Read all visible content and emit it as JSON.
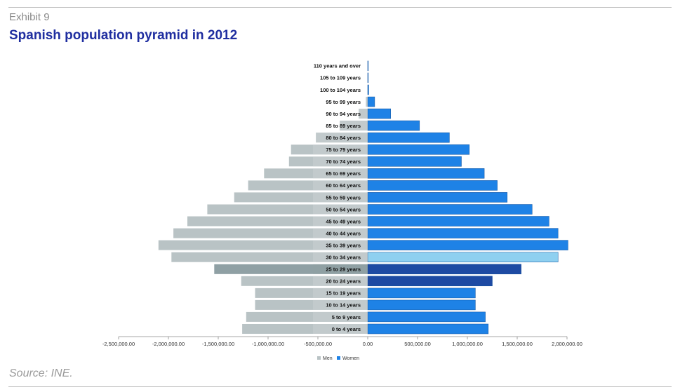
{
  "header": {
    "exhibit": "Exhibit 9",
    "title": "Spanish population pyramid in 2012"
  },
  "footer": {
    "source": "Source: INE."
  },
  "chart_data": {
    "type": "bar",
    "orientation": "horizontal",
    "layout": "population-pyramid",
    "title": "",
    "xlabel": "",
    "ylabel": "",
    "xlim": [
      -2500000,
      2000000
    ],
    "grid": false,
    "legend_position": "bottom",
    "categories": [
      "0 to 4 years",
      "5 to 9 years",
      "10 to 14 years",
      "15 to 19 years",
      "20 to 24 years",
      "25 to 29 years",
      "30 to 34 years",
      "35 to 39 years",
      "40 to 44 years",
      "45 to 49 years",
      "50 to 54 years",
      "55 to 59 years",
      "60 to 64 years",
      "65 to 69 years",
      "70 to 74 years",
      "75 to 79 years",
      "80 to 84 years",
      "85 to 89 years",
      "90 to 94 years",
      "95 to 99 years",
      "100 to 104 years",
      "105 to 109 years",
      "110 years and over"
    ],
    "x_ticks": [
      {
        "value": -2500000,
        "label": "-2,500,000.00"
      },
      {
        "value": -2000000,
        "label": "-2,000,000.00"
      },
      {
        "value": -1500000,
        "label": "-1,500,000.00"
      },
      {
        "value": -1000000,
        "label": "-1,000,000.00"
      },
      {
        "value": -500000,
        "label": "-500,000.00"
      },
      {
        "value": 0,
        "label": "0.00"
      },
      {
        "value": 500000,
        "label": "500,000.00"
      },
      {
        "value": 1000000,
        "label": "1,000,000.00"
      },
      {
        "value": 1500000,
        "label": "1,500,000.00"
      },
      {
        "value": 2000000,
        "label": "2,000,000.00"
      }
    ],
    "series": [
      {
        "name": "Men",
        "color": "#b9c3c5",
        "values": [
          -1260000,
          -1220000,
          -1130000,
          -1130000,
          -1270000,
          -1540000,
          -1970000,
          -2100000,
          -1950000,
          -1810000,
          -1610000,
          -1340000,
          -1200000,
          -1040000,
          -790000,
          -770000,
          -520000,
          -280000,
          -90000,
          -18000,
          -1500,
          -150,
          -30
        ]
      },
      {
        "name": "Women",
        "color": "#1e82e6",
        "values": [
          1210000,
          1180000,
          1080000,
          1080000,
          1250000,
          1540000,
          1910000,
          2010000,
          1910000,
          1820000,
          1650000,
          1400000,
          1300000,
          1170000,
          940000,
          1020000,
          820000,
          520000,
          230000,
          70000,
          10000,
          1000,
          100
        ]
      }
    ]
  },
  "chart_style": {
    "men_highlight_color": "#8fa0a4",
    "women_dark_color": "#1e4aa3",
    "women_pale_color": "#8fd0f0",
    "label_bg_color": "#c8cfd1"
  }
}
